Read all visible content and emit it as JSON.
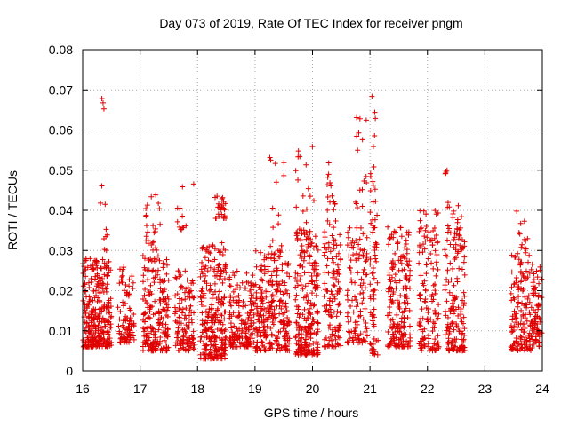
{
  "chart_data": {
    "type": "scatter",
    "title": "Day 073 of 2019, Rate Of TEC Index for receiver pngm",
    "xlabel": "GPS time / hours",
    "ylabel": "ROTI / TECUs",
    "xlim": [
      16,
      24
    ],
    "ylim": [
      0,
      0.08
    ],
    "x_ticks": [
      "16",
      "17",
      "18",
      "19",
      "20",
      "21",
      "22",
      "23",
      "24"
    ],
    "y_ticks": [
      "0",
      "0.01",
      "0.02",
      "0.03",
      "0.04",
      "0.05",
      "0.06",
      "0.07",
      "0.08"
    ],
    "grid": true,
    "marker": "+",
    "series": [
      {
        "name": "ROTI",
        "color": "#e00000",
        "clusters": [
          {
            "x": [
              16.0,
              16.5
            ],
            "y": [
              0.006,
              0.028
            ],
            "n": 300
          },
          {
            "x": [
              16.3,
              16.45
            ],
            "y": [
              0.03,
              0.07
            ],
            "n": 12
          },
          {
            "x": [
              16.6,
              16.9
            ],
            "y": [
              0.007,
              0.026
            ],
            "n": 90
          },
          {
            "x": [
              17.05,
              17.5
            ],
            "y": [
              0.005,
              0.029
            ],
            "n": 200
          },
          {
            "x": [
              17.1,
              17.35
            ],
            "y": [
              0.03,
              0.044
            ],
            "n": 25
          },
          {
            "x": [
              17.6,
              17.95
            ],
            "y": [
              0.005,
              0.025
            ],
            "n": 120
          },
          {
            "x": [
              17.65,
              17.95
            ],
            "y": [
              0.035,
              0.047
            ],
            "n": 12
          },
          {
            "x": [
              18.05,
              18.5
            ],
            "y": [
              0.003,
              0.032
            ],
            "n": 260
          },
          {
            "x": [
              18.3,
              18.5
            ],
            "y": [
              0.038,
              0.044
            ],
            "n": 25
          },
          {
            "x": [
              18.55,
              19.0
            ],
            "y": [
              0.006,
              0.025
            ],
            "n": 160
          },
          {
            "x": [
              19.0,
              19.6
            ],
            "y": [
              0.005,
              0.03
            ],
            "n": 260
          },
          {
            "x": [
              19.25,
              19.55
            ],
            "y": [
              0.03,
              0.057
            ],
            "n": 15
          },
          {
            "x": [
              19.7,
              20.1
            ],
            "y": [
              0.004,
              0.035
            ],
            "n": 230
          },
          {
            "x": [
              19.7,
              20.05
            ],
            "y": [
              0.035,
              0.056
            ],
            "n": 18
          },
          {
            "x": [
              20.2,
              20.5
            ],
            "y": [
              0.006,
              0.038
            ],
            "n": 120
          },
          {
            "x": [
              20.25,
              20.4
            ],
            "y": [
              0.04,
              0.052
            ],
            "n": 14
          },
          {
            "x": [
              20.6,
              20.95
            ],
            "y": [
              0.007,
              0.036
            ],
            "n": 110
          },
          {
            "x": [
              20.75,
              20.95
            ],
            "y": [
              0.04,
              0.066
            ],
            "n": 16
          },
          {
            "x": [
              21.0,
              21.15
            ],
            "y": [
              0.004,
              0.04
            ],
            "n": 60
          },
          {
            "x": [
              21.0,
              21.1
            ],
            "y": [
              0.042,
              0.073
            ],
            "n": 14
          },
          {
            "x": [
              21.3,
              21.7
            ],
            "y": [
              0.006,
              0.036
            ],
            "n": 190
          },
          {
            "x": [
              21.85,
              22.2
            ],
            "y": [
              0.005,
              0.04
            ],
            "n": 140
          },
          {
            "x": [
              22.3,
              22.65
            ],
            "y": [
              0.005,
              0.042
            ],
            "n": 170
          },
          {
            "x": [
              22.3,
              22.4
            ],
            "y": [
              0.049,
              0.051
            ],
            "n": 4
          },
          {
            "x": [
              23.45,
              23.85
            ],
            "y": [
              0.005,
              0.03
            ],
            "n": 160
          },
          {
            "x": [
              23.55,
              23.75
            ],
            "y": [
              0.03,
              0.04
            ],
            "n": 12
          },
          {
            "x": [
              23.85,
              24.0
            ],
            "y": [
              0.006,
              0.026
            ],
            "n": 60
          }
        ]
      }
    ]
  }
}
